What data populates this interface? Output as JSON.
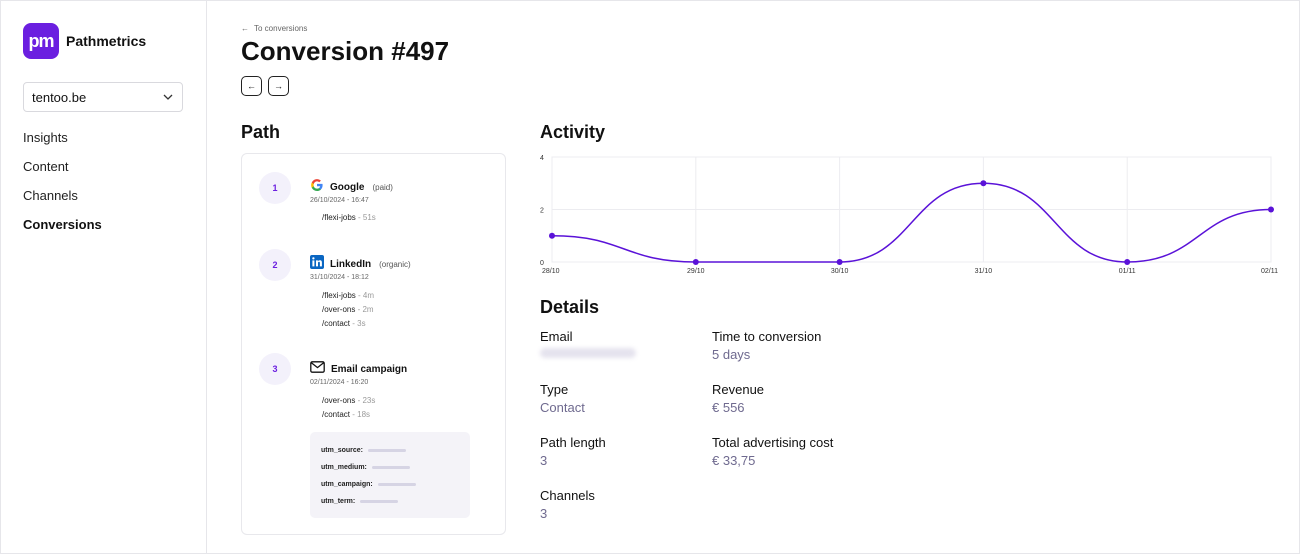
{
  "app": {
    "logo_text": "pm",
    "brand_name": "Pathmetrics",
    "brand_color": "#6b1fe0"
  },
  "sidebar": {
    "site_select": {
      "value": "tentoo.be",
      "icon": "chevron-down-icon"
    },
    "nav": [
      {
        "label": "Insights",
        "active": false
      },
      {
        "label": "Content",
        "active": false
      },
      {
        "label": "Channels",
        "active": false
      },
      {
        "label": "Conversions",
        "active": true
      }
    ]
  },
  "header": {
    "back_link": "To conversions",
    "title": "Conversion #497",
    "prev_icon": "←",
    "next_icon": "→"
  },
  "path": {
    "title": "Path",
    "steps": [
      {
        "num": "1",
        "icon": "google-icon",
        "name": "Google",
        "tag": "(paid)",
        "date": "26/10/2024 - 16:47",
        "pages": [
          {
            "url": "/flexi-jobs",
            "dur": " - 51s"
          }
        ]
      },
      {
        "num": "2",
        "icon": "linkedin-icon",
        "name": "LinkedIn",
        "tag": "(organic)",
        "date": "31/10/2024 - 18:12",
        "pages": [
          {
            "url": "/flexi-jobs",
            "dur": " - 4m"
          },
          {
            "url": "/over-ons",
            "dur": " - 2m"
          },
          {
            "url": "/contact",
            "dur": " - 3s"
          }
        ]
      },
      {
        "num": "3",
        "icon": "email-icon",
        "name": "Email campaign",
        "tag": "",
        "date": "02/11/2024 - 16:20",
        "pages": [
          {
            "url": "/over-ons",
            "dur": " - 23s"
          },
          {
            "url": "/contact",
            "dur": " - 18s"
          }
        ]
      }
    ],
    "utm": [
      {
        "label": "utm_source:"
      },
      {
        "label": "utm_medium:"
      },
      {
        "label": "utm_campaign:"
      },
      {
        "label": "utm_term:"
      }
    ]
  },
  "activity": {
    "title": "Activity",
    "line_color": "#5a12d8"
  },
  "chart_data": {
    "type": "line",
    "x": [
      "28/10",
      "29/10",
      "30/10",
      "31/10",
      "01/11",
      "02/11"
    ],
    "values": [
      1,
      0,
      0,
      3,
      0,
      2
    ],
    "yticks": [
      0,
      2,
      4
    ],
    "ylim": [
      0,
      4
    ],
    "grid": true,
    "title": "",
    "xlabel": "",
    "ylabel": ""
  },
  "details": {
    "title": "Details",
    "email": {
      "label": "Email",
      "value": ""
    },
    "time_to_conversion": {
      "label": "Time to conversion",
      "value": "5 days"
    },
    "type": {
      "label": "Type",
      "value": "Contact"
    },
    "revenue": {
      "label": "Revenue",
      "value": "€ 556"
    },
    "path_length": {
      "label": "Path length",
      "value": "3"
    },
    "total_ad_cost": {
      "label": "Total advertising cost",
      "value": "€ 33,75"
    },
    "channels": {
      "label": "Channels",
      "value": "3"
    }
  }
}
